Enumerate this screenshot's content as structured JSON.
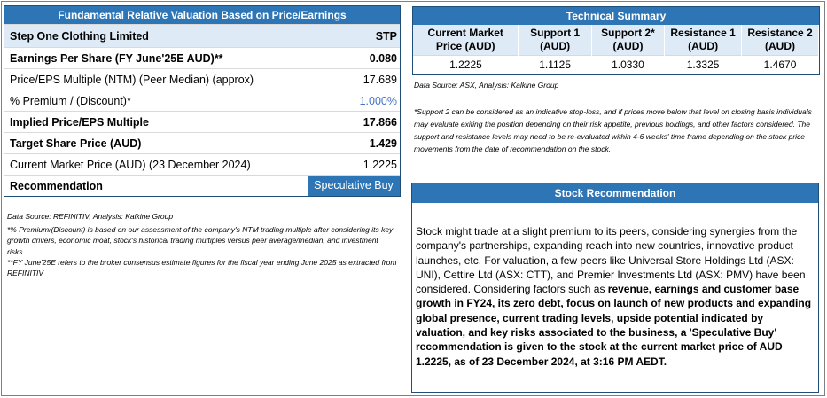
{
  "valuation": {
    "title": "Fundamental Relative Valuation Based on Price/Earnings",
    "company": "Step One Clothing Limited",
    "ticker": "STP",
    "rows": [
      {
        "label": "Earnings Per Share (FY June'25E AUD)**",
        "value": "0.080"
      },
      {
        "label": "Price/EPS Multiple (NTM) (Peer Median) (approx)",
        "value": "17.689"
      },
      {
        "label": "% Premium / (Discount)*",
        "value": "1.000%"
      },
      {
        "label": "Implied Price/EPS Multiple",
        "value": "17.866"
      },
      {
        "label": "Target Share Price (AUD)",
        "value": "1.429"
      },
      {
        "label": "Current Market Price (AUD) (23 December 2024)",
        "value": "1.2225"
      }
    ],
    "recommendation_label": "Recommendation",
    "recommendation_value": "Speculative Buy",
    "source": "Data Source: REFINITIV, Analysis: Kalkine Group",
    "note1": "*% Premium/(Discount) is based on our assessment of the company's NTM trading multiple after considering its key growth drivers, economic moat, stock's historical trading multiples versus peer average/median, and investment risks.",
    "note2": "**FY June'25E refers to the broker consensus estimate figures for the fiscal year ending June 2025 as extracted from REFINITIV"
  },
  "technical": {
    "title": "Technical Summary",
    "headers": [
      "Current Market Price (AUD)",
      "Support 1 (AUD)",
      "Support 2* (AUD)",
      "Resistance 1 (AUD)",
      "Resistance 2 (AUD)"
    ],
    "values": [
      "1.2225",
      "1.1125",
      "1.0330",
      "1.3325",
      "1.4670"
    ],
    "source": "Data Source: ASX, Analysis: Kalkine Group",
    "note": "*Support 2 can be considered as an indicative stop-loss, and if prices move below that level on closing basis individuals may evaluate exiting the position depending on their risk appetite, previous holdings, and other factors considered. The support and resistance levels may need to be re-evaluated within 4-6 weeks' time frame depending on the stock price movements from the date of recommendation on the stock."
  },
  "stock_recommendation": {
    "title": "Stock Recommendation",
    "text_plain": "Stock might trade at a slight premium to its peers, considering synergies from the company's partnerships, expanding reach into new countries, innovative product launches, etc. For valuation, a few peers like Universal Store Holdings Ltd (ASX: UNI), Cettire Ltd (ASX: CTT), and Premier Investments Ltd (ASX: PMV) have been considered. Considering factors such as ",
    "text_bold": "revenue, earnings and customer base growth in FY24, its zero debt, focus on launch of new products and expanding global presence, current trading levels, upside potential indicated by valuation, and key risks associated to the business, a 'Speculative Buy' recommendation is given to the stock at the current market price of AUD 1.2225, as of 23 December 2024, at 3:16 PM AEDT."
  }
}
